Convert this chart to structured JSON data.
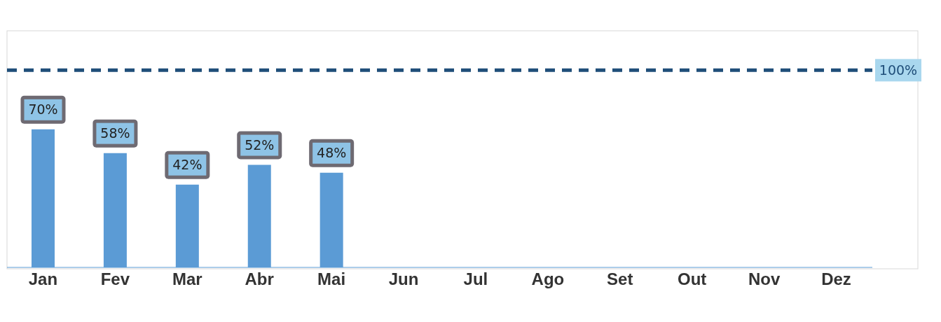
{
  "chart_data": {
    "type": "bar",
    "categories": [
      "Jan",
      "Fev",
      "Mar",
      "Abr",
      "Mai",
      "Jun",
      "Jul",
      "Ago",
      "Set",
      "Out",
      "Nov",
      "Dez"
    ],
    "values": [
      70,
      58,
      42,
      52,
      48,
      null,
      null,
      null,
      null,
      null,
      null,
      null
    ],
    "value_labels": [
      "70%",
      "58%",
      "42%",
      "52%",
      "48%",
      null,
      null,
      null,
      null,
      null,
      null,
      null
    ],
    "color": "#5b9bd5",
    "ylim": [
      0,
      120
    ],
    "ref_lines": [
      {
        "axis": "y",
        "value": 100,
        "label": "100%",
        "color": "#1f4e79",
        "line_style": "dashed"
      }
    ]
  }
}
